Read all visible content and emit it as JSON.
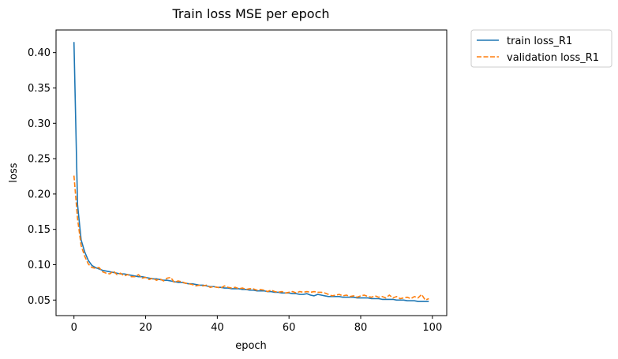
{
  "chart_data": {
    "type": "line",
    "title": "Train loss MSE per epoch",
    "xlabel": "epoch",
    "ylabel": "loss",
    "xlim": [
      -5,
      104
    ],
    "ylim": [
      0.028,
      0.432
    ],
    "xticks": [
      0,
      20,
      40,
      60,
      80,
      100
    ],
    "yticks": [
      0.05,
      0.1,
      0.15,
      0.2,
      0.25,
      0.3,
      0.35,
      0.4
    ],
    "yticklabels": [
      "0.05",
      "0.10",
      "0.15",
      "0.20",
      "0.25",
      "0.30",
      "0.35",
      "0.40"
    ],
    "grid": false,
    "legend_position": "outside-top-right",
    "series": [
      {
        "name": "train loss_R1",
        "color": "#1f77b4",
        "style": "solid",
        "x": [
          0,
          1,
          2,
          3,
          4,
          5,
          6,
          7,
          8,
          9,
          10,
          11,
          12,
          13,
          14,
          15,
          16,
          17,
          18,
          19,
          20,
          21,
          22,
          23,
          24,
          25,
          26,
          27,
          28,
          29,
          30,
          31,
          32,
          33,
          34,
          35,
          36,
          37,
          38,
          39,
          40,
          41,
          42,
          43,
          44,
          45,
          46,
          47,
          48,
          49,
          50,
          51,
          52,
          53,
          54,
          55,
          56,
          57,
          58,
          59,
          60,
          61,
          62,
          63,
          64,
          65,
          66,
          67,
          68,
          69,
          70,
          71,
          72,
          73,
          74,
          75,
          76,
          77,
          78,
          79,
          80,
          81,
          82,
          83,
          84,
          85,
          86,
          87,
          88,
          89,
          90,
          91,
          92,
          93,
          94,
          95,
          96,
          97,
          98,
          99
        ],
        "y": [
          0.415,
          0.185,
          0.135,
          0.118,
          0.106,
          0.099,
          0.096,
          0.094,
          0.092,
          0.091,
          0.09,
          0.089,
          0.088,
          0.087,
          0.087,
          0.086,
          0.085,
          0.084,
          0.083,
          0.083,
          0.082,
          0.081,
          0.08,
          0.08,
          0.079,
          0.078,
          0.078,
          0.077,
          0.076,
          0.075,
          0.075,
          0.074,
          0.073,
          0.073,
          0.072,
          0.071,
          0.071,
          0.07,
          0.069,
          0.069,
          0.068,
          0.068,
          0.067,
          0.067,
          0.066,
          0.066,
          0.066,
          0.065,
          0.065,
          0.064,
          0.064,
          0.063,
          0.063,
          0.063,
          0.062,
          0.062,
          0.061,
          0.061,
          0.06,
          0.06,
          0.06,
          0.059,
          0.059,
          0.058,
          0.058,
          0.059,
          0.057,
          0.056,
          0.058,
          0.057,
          0.056,
          0.055,
          0.055,
          0.055,
          0.055,
          0.054,
          0.054,
          0.054,
          0.054,
          0.053,
          0.053,
          0.053,
          0.053,
          0.052,
          0.052,
          0.052,
          0.051,
          0.051,
          0.051,
          0.051,
          0.05,
          0.05,
          0.05,
          0.049,
          0.049,
          0.049,
          0.048,
          0.048,
          0.048,
          0.048
        ]
      },
      {
        "name": "validation loss_R1",
        "color": "#ff7f0e",
        "style": "dashed",
        "x": [
          0,
          1,
          2,
          3,
          4,
          5,
          6,
          7,
          8,
          9,
          10,
          11,
          12,
          13,
          14,
          15,
          16,
          17,
          18,
          19,
          20,
          21,
          22,
          23,
          24,
          25,
          26,
          27,
          28,
          29,
          30,
          31,
          32,
          33,
          34,
          35,
          36,
          37,
          38,
          39,
          40,
          41,
          42,
          43,
          44,
          45,
          46,
          47,
          48,
          49,
          50,
          51,
          52,
          53,
          54,
          55,
          56,
          57,
          58,
          59,
          60,
          61,
          62,
          63,
          64,
          65,
          66,
          67,
          68,
          69,
          70,
          71,
          72,
          73,
          74,
          75,
          76,
          77,
          78,
          79,
          80,
          81,
          82,
          83,
          84,
          85,
          86,
          87,
          88,
          89,
          90,
          91,
          92,
          93,
          94,
          95,
          96,
          97,
          98,
          99
        ],
        "y": [
          0.226,
          0.165,
          0.127,
          0.112,
          0.101,
          0.096,
          0.095,
          0.096,
          0.09,
          0.088,
          0.087,
          0.091,
          0.086,
          0.088,
          0.084,
          0.086,
          0.083,
          0.083,
          0.086,
          0.081,
          0.082,
          0.079,
          0.081,
          0.078,
          0.08,
          0.077,
          0.081,
          0.082,
          0.075,
          0.077,
          0.076,
          0.074,
          0.073,
          0.072,
          0.07,
          0.071,
          0.07,
          0.071,
          0.068,
          0.069,
          0.068,
          0.067,
          0.07,
          0.068,
          0.067,
          0.068,
          0.066,
          0.067,
          0.065,
          0.066,
          0.066,
          0.064,
          0.065,
          0.064,
          0.062,
          0.064,
          0.062,
          0.061,
          0.062,
          0.06,
          0.061,
          0.062,
          0.06,
          0.062,
          0.061,
          0.062,
          0.061,
          0.062,
          0.061,
          0.061,
          0.06,
          0.058,
          0.056,
          0.057,
          0.058,
          0.056,
          0.057,
          0.055,
          0.056,
          0.054,
          0.056,
          0.057,
          0.055,
          0.054,
          0.056,
          0.054,
          0.055,
          0.053,
          0.057,
          0.053,
          0.055,
          0.052,
          0.053,
          0.054,
          0.052,
          0.055,
          0.053,
          0.058,
          0.05,
          0.052
        ]
      }
    ]
  }
}
